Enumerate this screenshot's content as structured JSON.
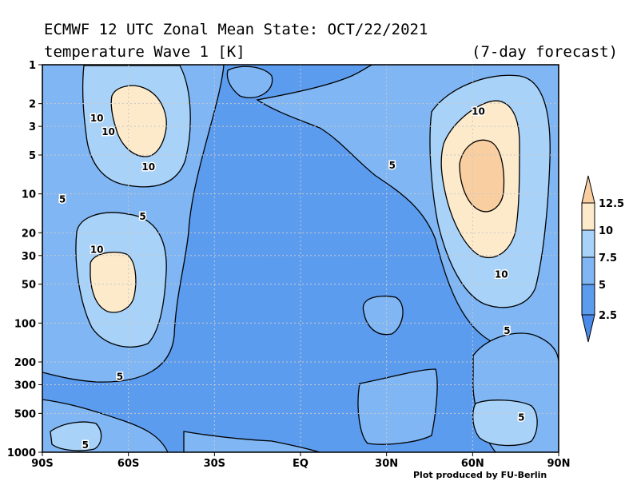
{
  "title": {
    "line1": "ECMWF 12 UTC Zonal Mean State: OCT/22/2021",
    "line2": "temperature Wave 1 [K]",
    "right": "(7-day forecast)"
  },
  "credit": "Plot produced by FU-Berlin",
  "chart_data": {
    "type": "contour",
    "variable": "temperature Wave 1 amplitude",
    "units": "K",
    "x_axis": {
      "ticks": [
        "90S",
        "60S",
        "30S",
        "EQ",
        "30N",
        "60N",
        "90N"
      ],
      "values": [
        -90,
        -60,
        -30,
        0,
        30,
        60,
        90
      ],
      "range": [
        -90,
        90
      ]
    },
    "y_axis": {
      "scale": "log",
      "ticks": [
        "1",
        "2",
        "3",
        "5",
        "10",
        "20",
        "30",
        "50",
        "100",
        "200",
        "300",
        "500",
        "1000"
      ],
      "values": [
        1,
        2,
        3,
        5,
        10,
        20,
        30,
        50,
        100,
        200,
        300,
        500,
        1000
      ],
      "range": [
        1000,
        1
      ]
    },
    "contour_levels": [
      2.5,
      5,
      7.5,
      10,
      12.5
    ],
    "colorbar": {
      "labels": [
        "12.5",
        "10",
        "7.5",
        "5",
        "2.5"
      ],
      "colors": [
        "#f9cfa1",
        "#fdeacb",
        "#a9d2f8",
        "#7fb6f3",
        "#5c9cef",
        "#4a8aea"
      ]
    },
    "contour_labels": [
      {
        "text": "10",
        "lat": -71,
        "p": 2.6
      },
      {
        "text": "10",
        "lat": -67,
        "p": 3.3
      },
      {
        "text": "10",
        "lat": -53,
        "p": 6.2
      },
      {
        "text": "5",
        "lat": -83,
        "p": 11
      },
      {
        "text": "5",
        "lat": -55,
        "p": 15
      },
      {
        "text": "10",
        "lat": -71,
        "p": 27
      },
      {
        "text": "5",
        "lat": -63,
        "p": 260
      },
      {
        "text": "5",
        "lat": -75,
        "p": 880
      },
      {
        "text": "5",
        "lat": 32,
        "p": 6
      },
      {
        "text": "10",
        "lat": 62,
        "p": 2.3
      },
      {
        "text": "10",
        "lat": 70,
        "p": 42
      },
      {
        "text": "5",
        "lat": 72,
        "p": 115
      },
      {
        "text": "5",
        "lat": 77,
        "p": 540
      }
    ],
    "grid": true,
    "legend": "right colorbar"
  }
}
